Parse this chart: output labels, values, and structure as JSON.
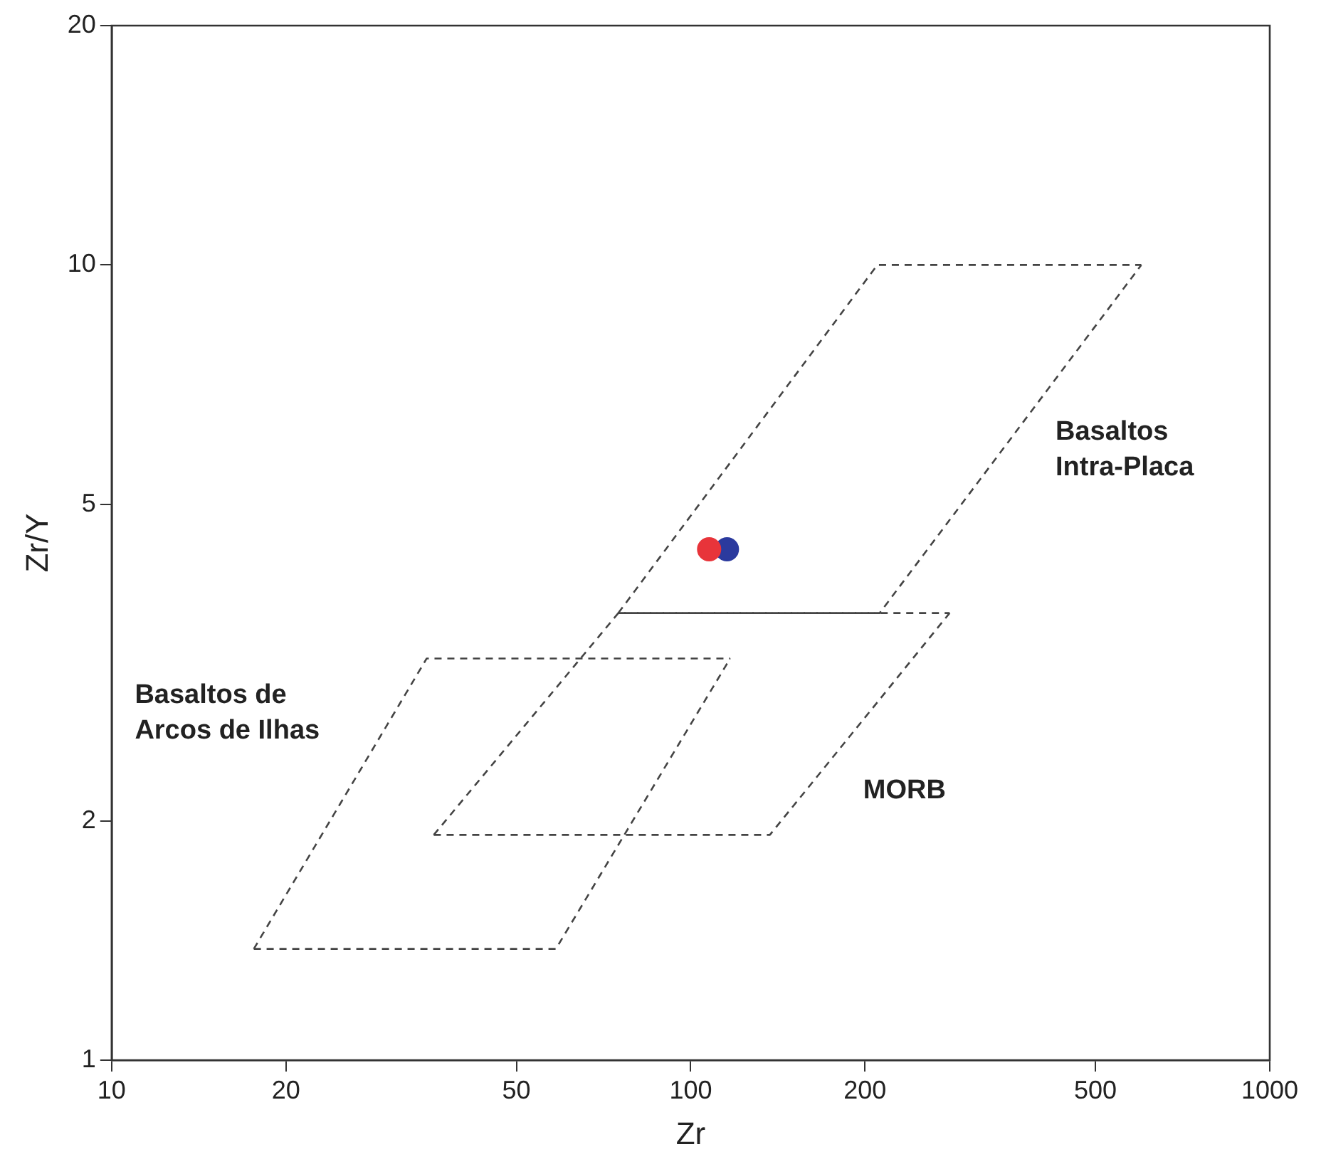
{
  "chart_data": {
    "type": "scatter",
    "xlabel": "Zr",
    "ylabel": "Zr/Y",
    "log": "xy",
    "grid": false,
    "legend": false,
    "xlim": [
      10,
      1000
    ],
    "xticks": [
      10,
      20,
      50,
      100,
      200,
      500,
      1000
    ],
    "ylim": [
      1,
      20
    ],
    "yticks": [
      1,
      2,
      5,
      10,
      20
    ],
    "series": [
      {
        "type": "line",
        "x": [
          75,
          210,
          600
        ],
        "values": [
          3.65,
          10,
          10
        ],
        "color": "#444444",
        "line_style": "dashed",
        "marker": "none"
      },
      {
        "type": "line",
        "x": [
          75,
          212,
          600
        ],
        "values": [
          3.65,
          3.65,
          10
        ],
        "color": "#444444",
        "line_style": "dashed",
        "marker": "none"
      },
      {
        "type": "line",
        "x": [
          36,
          75,
          280
        ],
        "values": [
          1.92,
          3.65,
          3.65
        ],
        "color": "#444444",
        "line_style": "dashed",
        "marker": "none"
      },
      {
        "type": "line",
        "x": [
          36,
          137,
          280
        ],
        "values": [
          1.92,
          1.92,
          3.65
        ],
        "color": "#444444",
        "line_style": "dashed",
        "marker": "none"
      },
      {
        "type": "line",
        "x": [
          17.6,
          35,
          117
        ],
        "values": [
          1.38,
          3.2,
          3.2
        ],
        "color": "#444444",
        "line_style": "dashed",
        "marker": "none"
      },
      {
        "type": "line",
        "x": [
          17.6,
          58.5,
          117
        ],
        "values": [
          1.38,
          1.38,
          3.2
        ],
        "color": "#444444",
        "line_style": "dashed",
        "marker": "none"
      },
      {
        "type": "scatter",
        "x": [
          107.6
        ],
        "values": [
          4.39
        ],
        "color": "#e8343a",
        "marker": "circle"
      },
      {
        "type": "scatter",
        "x": [
          115.5
        ],
        "values": [
          4.39
        ],
        "color": "#2b3a9e",
        "marker": "circle"
      }
    ],
    "annotations": [
      "Basaltos\nIntra-Placa",
      "MORB",
      "Basaltos de\nArcos de Ilhas"
    ]
  }
}
